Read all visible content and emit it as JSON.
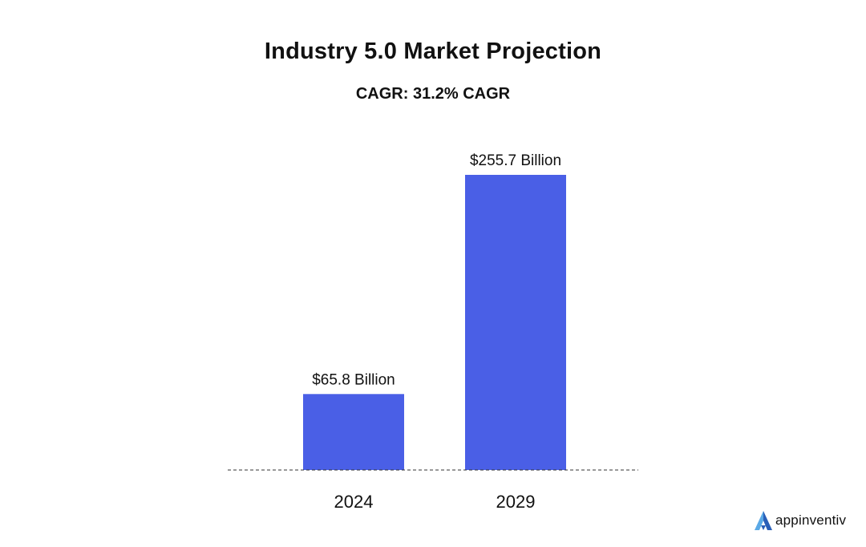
{
  "chart_data": {
    "type": "bar",
    "title": "Industry 5.0 Market Projection",
    "subtitle": "CAGR: 31.2% CAGR",
    "categories": [
      "2024",
      "2029"
    ],
    "values": [
      65.8,
      255.7
    ],
    "data_labels": [
      "$65.8 Billion",
      "$255.7 Billion"
    ],
    "unit": "Billion USD",
    "xlabel": "",
    "ylabel": "",
    "ylim": [
      0,
      255.7
    ],
    "grid": false,
    "legend": "none",
    "baseline_style": "dashed",
    "bar_color": "#4A5FE6"
  },
  "brand": {
    "logo_text": "appinventiv",
    "logo_icon": "appinventiv-logo-icon",
    "colors": {
      "light": "#5AA9E6",
      "dark": "#2A5FB8"
    }
  }
}
